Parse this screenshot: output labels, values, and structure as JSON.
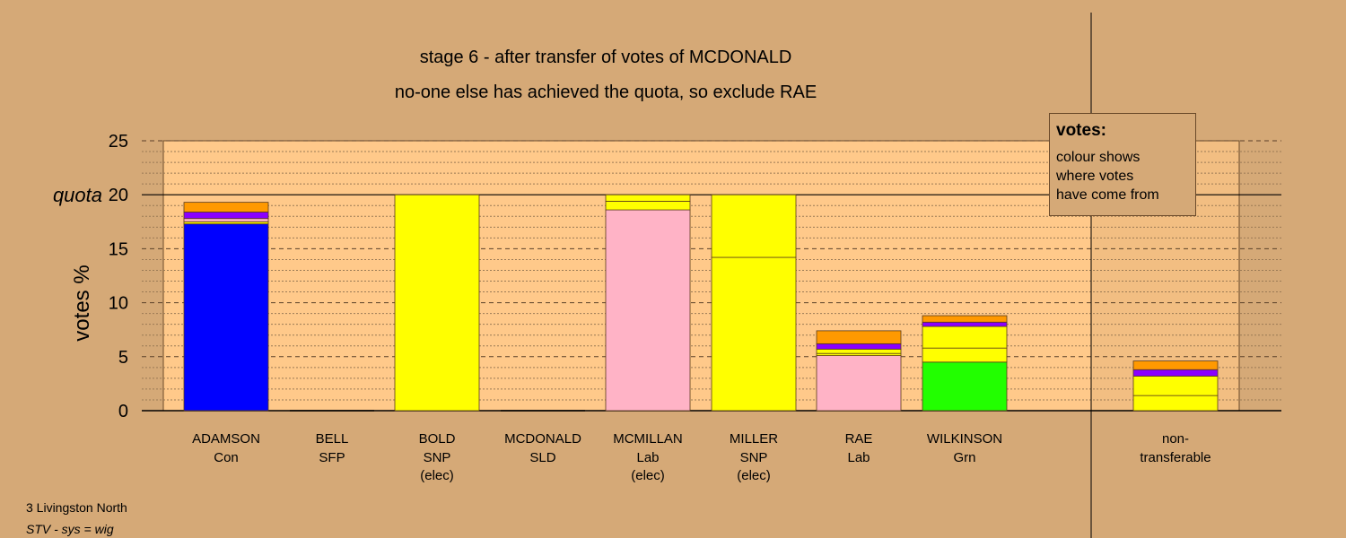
{
  "title_line1": "stage 6 - after transfer of votes of MCDONALD",
  "title_line2": "no-one else has achieved the quota, so exclude RAE",
  "legend": {
    "heading": "votes:",
    "lines": [
      "colour shows",
      "where votes",
      "have come from"
    ]
  },
  "footer": {
    "constituency": "3 Livingston North",
    "system": "STV - sys = wig"
  },
  "chart_data": {
    "type": "bar",
    "stacked": true,
    "ylabel": "votes %",
    "ylim": [
      0,
      25
    ],
    "yticks": [
      0,
      5,
      10,
      15,
      20,
      25
    ],
    "quota": 20,
    "quota_label": "quota",
    "categories": [
      {
        "name": "ADAMSON",
        "party": "Con",
        "note": ""
      },
      {
        "name": "BELL",
        "party": "SFP",
        "note": ""
      },
      {
        "name": "BOLD",
        "party": "SNP",
        "note": "(elec)"
      },
      {
        "name": "MCDONALD",
        "party": "SLD",
        "note": ""
      },
      {
        "name": "MCMILLAN",
        "party": "Lab",
        "note": "(elec)"
      },
      {
        "name": "MILLER",
        "party": "SNP",
        "note": "(elec)"
      },
      {
        "name": "RAE",
        "party": "Lab",
        "note": ""
      },
      {
        "name": "WILKINSON",
        "party": "Grn",
        "note": ""
      },
      {
        "name": "non-",
        "party": "transferable",
        "note": ""
      }
    ],
    "segments": [
      [
        {
          "value": 17.3,
          "color": "#0000ff"
        },
        {
          "value": 0.2,
          "color": "#ffff00"
        },
        {
          "value": 0.3,
          "color": "#ffb3c6"
        },
        {
          "value": 0.6,
          "color": "#8a00ff"
        },
        {
          "value": 0.9,
          "color": "#ff9900"
        }
      ],
      [],
      [
        {
          "value": 20.0,
          "color": "#ffff00"
        }
      ],
      [],
      [
        {
          "value": 18.6,
          "color": "#ffb3c6"
        },
        {
          "value": 0.8,
          "color": "#ffff00"
        },
        {
          "value": 0.6,
          "color": "#ffff00"
        }
      ],
      [
        {
          "value": 14.2,
          "color": "#ffff00"
        },
        {
          "value": 5.8,
          "color": "#ffff00"
        }
      ],
      [
        {
          "value": 5.1,
          "color": "#ffb3c6"
        },
        {
          "value": 0.2,
          "color": "#ffff00"
        },
        {
          "value": 0.4,
          "color": "#ffff00"
        },
        {
          "value": 0.5,
          "color": "#8a00ff"
        },
        {
          "value": 1.2,
          "color": "#ff9900"
        }
      ],
      [
        {
          "value": 4.5,
          "color": "#22ff00"
        },
        {
          "value": 1.3,
          "color": "#ffff00"
        },
        {
          "value": 2.0,
          "color": "#ffff00"
        },
        {
          "value": 0.4,
          "color": "#8a00ff"
        },
        {
          "value": 0.6,
          "color": "#ff9900"
        }
      ],
      [
        {
          "value": 1.4,
          "color": "#ffff00"
        },
        {
          "value": 1.8,
          "color": "#ffff00"
        },
        {
          "value": 0.6,
          "color": "#8a00ff"
        },
        {
          "value": 0.8,
          "color": "#ff9900"
        }
      ]
    ],
    "colors": {
      "background": "#d5a977",
      "plot_area": "#ffc98a"
    }
  }
}
